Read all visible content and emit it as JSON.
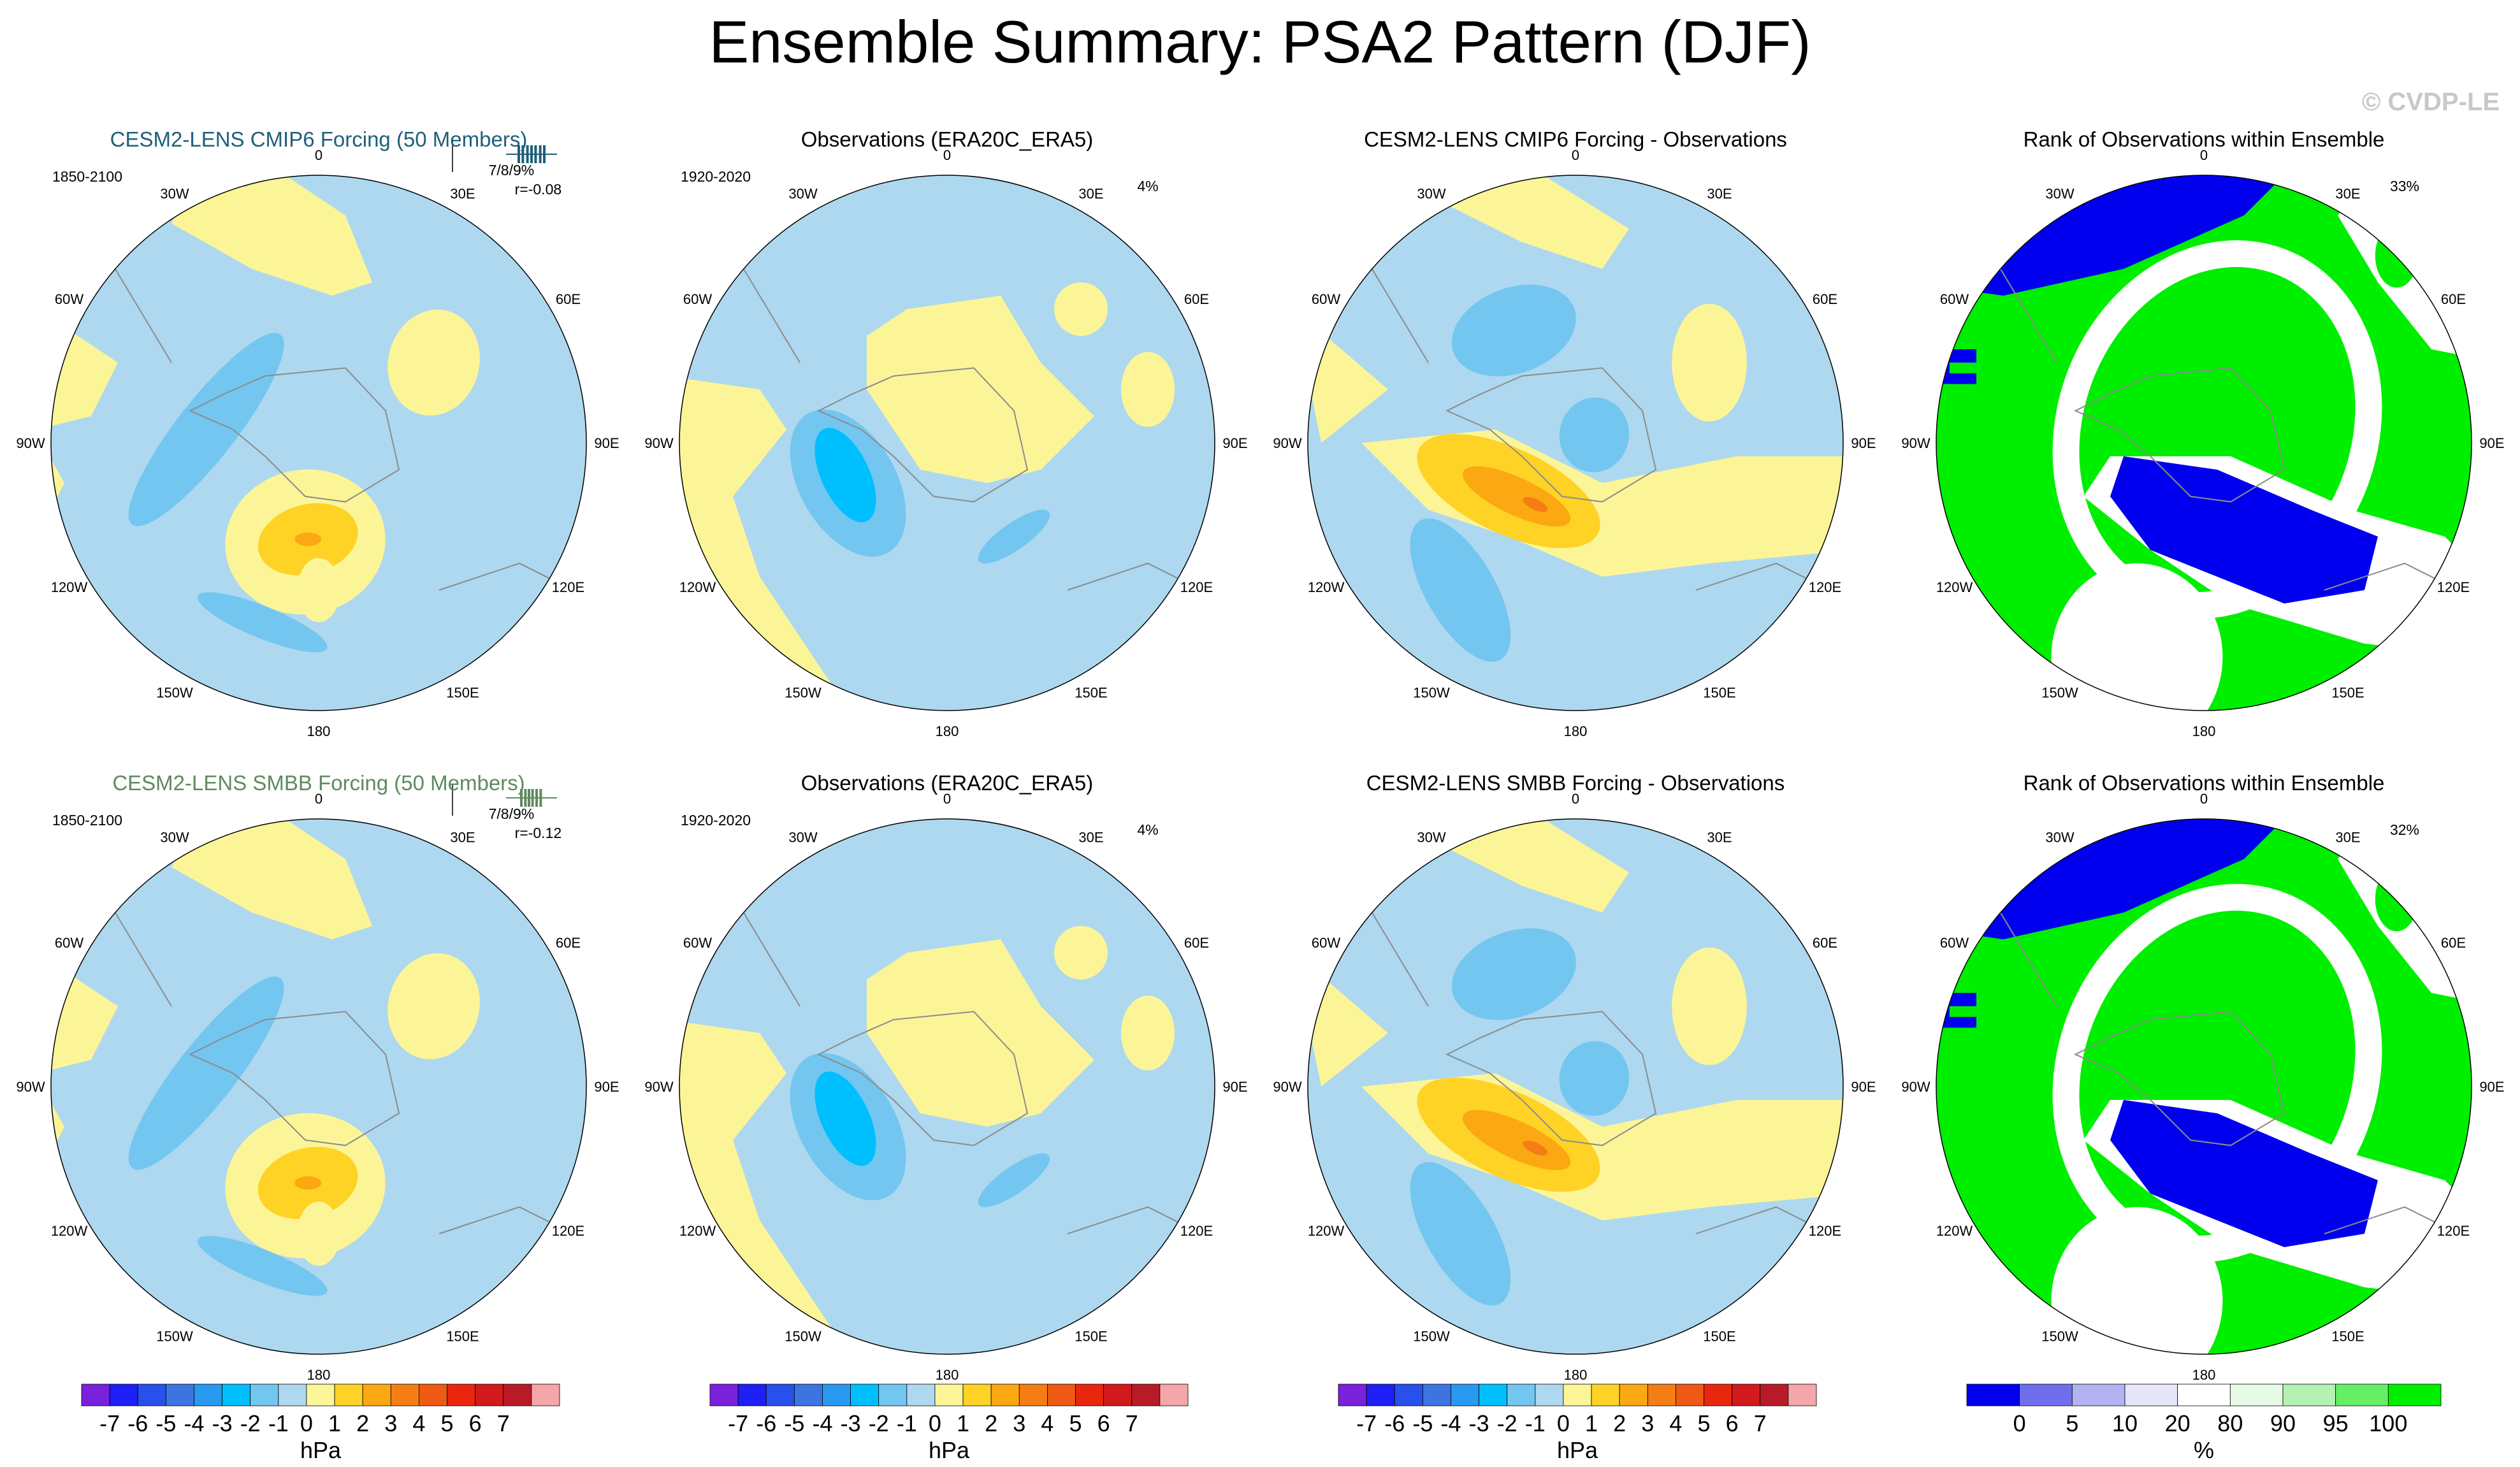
{
  "page": {
    "title": "Ensemble Summary: PSA2 Pattern (DJF)",
    "watermark": "© CVDP-LE"
  },
  "colors": {
    "ocean_light_blue": "#add8ef",
    "blue_mid": "#73c6f0",
    "blue_deep": "#00bfff",
    "yellow": "#fcf598",
    "yellow_orange": "#fed325",
    "orange": "#fba813",
    "orange_deep": "#f57d15",
    "rank_blue": "#0000ee",
    "rank_green": "#00ee00",
    "rank_white": "#ffffff",
    "model_title_top": "#1f5f7a",
    "model_title_bottom": "#5f8a5f"
  },
  "chart_data": {
    "type": "polar_contour_maps",
    "lon_labels": [
      "0",
      "30E",
      "60E",
      "90E",
      "120E",
      "150E",
      "180",
      "150W",
      "120W",
      "90W",
      "60W",
      "30W"
    ],
    "rows": [
      {
        "panels": [
          {
            "kind": "model",
            "title": "CESM2-LENS CMIP6 Forcing (50 Members)",
            "years": "1850-2100",
            "stat1": "7/8/9%",
            "stat2": "r=-0.08",
            "pct": "",
            "rank_quantiles": [
              0.25,
              0.33,
              0.42,
              0.5,
              0.58,
              0.67,
              0.75
            ]
          },
          {
            "kind": "obs",
            "title": "Observations (ERA20C_ERA5)",
            "years": "1920-2020",
            "stat1": "",
            "stat2": "",
            "pct": "4%"
          },
          {
            "kind": "diff",
            "title": "CESM2-LENS CMIP6 Forcing - Observations",
            "years": "",
            "stat1": "",
            "stat2": "",
            "pct": ""
          },
          {
            "kind": "rank",
            "title": "Rank of Observations within Ensemble",
            "years": "",
            "stat1": "",
            "stat2": "",
            "pct": "33%"
          }
        ]
      },
      {
        "panels": [
          {
            "kind": "model",
            "title": "CESM2-LENS SMBB Forcing (50 Members)",
            "years": "1850-2100",
            "stat1": "7/8/9%",
            "stat2": "r=-0.12",
            "pct": "",
            "rank_quantiles": [
              0.3,
              0.38,
              0.45,
              0.52,
              0.6,
              0.68
            ]
          },
          {
            "kind": "obs",
            "title": "Observations (ERA20C_ERA5)",
            "years": "1920-2020",
            "stat1": "",
            "stat2": "",
            "pct": "4%"
          },
          {
            "kind": "diff",
            "title": "CESM2-LENS SMBB Forcing - Observations",
            "years": "",
            "stat1": "",
            "stat2": "",
            "pct": ""
          },
          {
            "kind": "rank",
            "title": "Rank of Observations within Ensemble",
            "years": "",
            "stat1": "",
            "stat2": "",
            "pct": "32%"
          }
        ]
      }
    ],
    "colorbars": [
      {
        "unit": "hPa",
        "tick_labels": [
          "-7",
          "-6",
          "-5",
          "-4",
          "-3",
          "-2",
          "-1",
          "0",
          "1",
          "2",
          "3",
          "4",
          "5",
          "6",
          "7"
        ],
        "colors": [
          "#7a21dc",
          "#1e1ef5",
          "#2850eb",
          "#3c75e1",
          "#2899f0",
          "#00bfff",
          "#73c6f0",
          "#add8ef",
          "#fcf598",
          "#fed325",
          "#fba813",
          "#f57d15",
          "#ee5a14",
          "#e9260e",
          "#d2191b",
          "#b81a28",
          "#f4a6a8"
        ]
      },
      {
        "unit": "hPa",
        "tick_labels": [
          "-7",
          "-6",
          "-5",
          "-4",
          "-3",
          "-2",
          "-1",
          "0",
          "1",
          "2",
          "3",
          "4",
          "5",
          "6",
          "7"
        ],
        "colors": [
          "#7a21dc",
          "#1e1ef5",
          "#2850eb",
          "#3c75e1",
          "#2899f0",
          "#00bfff",
          "#73c6f0",
          "#add8ef",
          "#fcf598",
          "#fed325",
          "#fba813",
          "#f57d15",
          "#ee5a14",
          "#e9260e",
          "#d2191b",
          "#b81a28",
          "#f4a6a8"
        ]
      },
      {
        "unit": "hPa",
        "tick_labels": [
          "-7",
          "-6",
          "-5",
          "-4",
          "-3",
          "-2",
          "-1",
          "0",
          "1",
          "2",
          "3",
          "4",
          "5",
          "6",
          "7"
        ],
        "colors": [
          "#7a21dc",
          "#1e1ef5",
          "#2850eb",
          "#3c75e1",
          "#2899f0",
          "#00bfff",
          "#73c6f0",
          "#add8ef",
          "#fcf598",
          "#fed325",
          "#fba813",
          "#f57d15",
          "#ee5a14",
          "#e9260e",
          "#d2191b",
          "#b81a28",
          "#f4a6a8"
        ]
      },
      {
        "unit": "%",
        "tick_labels": [
          "0",
          "5",
          "10",
          "20",
          "80",
          "90",
          "95",
          "100"
        ],
        "colors": [
          "#0000ee",
          "#6f6fee",
          "#b3b3f2",
          "#e6e6fa",
          "#ffffff",
          "#e6fae6",
          "#b3f2b3",
          "#66ee66",
          "#00ee00"
        ]
      }
    ]
  }
}
